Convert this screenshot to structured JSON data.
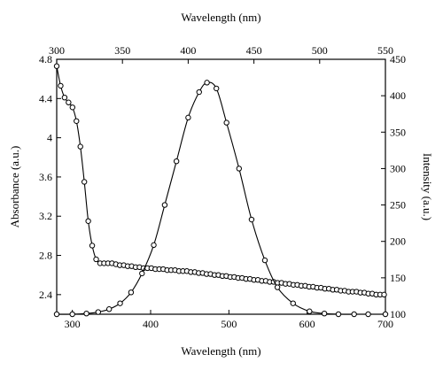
{
  "chart_data": {
    "type": "scatter",
    "grid": false,
    "legend": "none",
    "axes": {
      "bottom": {
        "label": "Wavelength (nm)",
        "range": [
          280,
          700
        ],
        "ticks": [
          "300",
          "400",
          "500",
          "600",
          "700"
        ]
      },
      "top": {
        "label": "Wavelength (nm)",
        "range": [
          300,
          550
        ],
        "ticks": [
          "300",
          "350",
          "400",
          "450",
          "500",
          "550"
        ]
      },
      "left": {
        "label": "Absorbance (a.u.)",
        "range": [
          2.2,
          4.8
        ],
        "ticks": [
          "2.4",
          "2.8",
          "3.2",
          "3.6",
          "4",
          "4.4",
          "4.8"
        ]
      },
      "right": {
        "label": "Intensity (a.u.)",
        "range": [
          100,
          450
        ],
        "ticks": [
          "100",
          "150",
          "200",
          "250",
          "300",
          "350",
          "400",
          "450"
        ]
      }
    },
    "series": [
      {
        "role": "absorbance",
        "x_axis": "top",
        "y_axis": "left",
        "style": "line-with-open-circles",
        "points": [
          [
            300,
            4.73
          ],
          [
            303,
            4.53
          ],
          [
            306,
            4.41
          ],
          [
            309,
            4.36
          ],
          [
            312,
            4.31
          ],
          [
            315,
            4.17
          ],
          [
            318,
            3.91
          ],
          [
            321,
            3.55
          ],
          [
            324,
            3.15
          ],
          [
            327,
            2.9
          ],
          [
            330,
            2.76
          ],
          [
            333,
            2.72
          ],
          [
            336,
            2.72
          ],
          [
            339,
            2.72
          ],
          [
            342,
            2.72
          ],
          [
            345,
            2.71
          ],
          [
            348,
            2.7
          ],
          [
            351,
            2.7
          ],
          [
            354,
            2.69
          ],
          [
            357,
            2.69
          ],
          [
            360,
            2.68
          ],
          [
            363,
            2.68
          ],
          [
            366,
            2.67
          ],
          [
            369,
            2.67
          ],
          [
            372,
            2.67
          ],
          [
            375,
            2.66
          ],
          [
            378,
            2.66
          ],
          [
            381,
            2.66
          ],
          [
            384,
            2.65
          ],
          [
            387,
            2.65
          ],
          [
            390,
            2.65
          ],
          [
            393,
            2.64
          ],
          [
            396,
            2.64
          ],
          [
            399,
            2.64
          ],
          [
            402,
            2.63
          ],
          [
            405,
            2.63
          ],
          [
            408,
            2.62
          ],
          [
            411,
            2.62
          ],
          [
            414,
            2.61
          ],
          [
            417,
            2.61
          ],
          [
            420,
            2.6
          ],
          [
            423,
            2.6
          ],
          [
            426,
            2.59
          ],
          [
            429,
            2.59
          ],
          [
            432,
            2.58
          ],
          [
            435,
            2.58
          ],
          [
            438,
            2.57
          ],
          [
            441,
            2.57
          ],
          [
            444,
            2.56
          ],
          [
            447,
            2.56
          ],
          [
            450,
            2.55
          ],
          [
            453,
            2.55
          ],
          [
            456,
            2.54
          ],
          [
            459,
            2.54
          ],
          [
            462,
            2.53
          ],
          [
            465,
            2.53
          ],
          [
            468,
            2.52
          ],
          [
            471,
            2.52
          ],
          [
            474,
            2.51
          ],
          [
            477,
            2.51
          ],
          [
            480,
            2.5
          ],
          [
            483,
            2.5
          ],
          [
            486,
            2.49
          ],
          [
            489,
            2.49
          ],
          [
            492,
            2.48
          ],
          [
            495,
            2.48
          ],
          [
            498,
            2.47
          ],
          [
            501,
            2.47
          ],
          [
            504,
            2.46
          ],
          [
            507,
            2.46
          ],
          [
            510,
            2.45
          ],
          [
            513,
            2.45
          ],
          [
            516,
            2.44
          ],
          [
            519,
            2.44
          ],
          [
            522,
            2.43
          ],
          [
            525,
            2.43
          ],
          [
            528,
            2.43
          ],
          [
            531,
            2.42
          ],
          [
            534,
            2.42
          ],
          [
            537,
            2.41
          ],
          [
            540,
            2.41
          ],
          [
            543,
            2.4
          ],
          [
            546,
            2.4
          ],
          [
            549,
            2.4
          ]
        ]
      },
      {
        "role": "intensity",
        "x_axis": "bottom",
        "y_axis": "right",
        "style": "line-with-open-circles",
        "points": [
          [
            280,
            100
          ],
          [
            300,
            100
          ],
          [
            318,
            101
          ],
          [
            333,
            103
          ],
          [
            347,
            107
          ],
          [
            361,
            115
          ],
          [
            375,
            130
          ],
          [
            389,
            156
          ],
          [
            404,
            195
          ],
          [
            418,
            250
          ],
          [
            433,
            310
          ],
          [
            448,
            370
          ],
          [
            462,
            405
          ],
          [
            472,
            418
          ],
          [
            484,
            410
          ],
          [
            497,
            363
          ],
          [
            513,
            300
          ],
          [
            529,
            230
          ],
          [
            546,
            174
          ],
          [
            562,
            137
          ],
          [
            582,
            115
          ],
          [
            603,
            104
          ],
          [
            622,
            101
          ],
          [
            640,
            100
          ],
          [
            660,
            100
          ],
          [
            678,
            100
          ],
          [
            700,
            100
          ]
        ]
      }
    ]
  }
}
